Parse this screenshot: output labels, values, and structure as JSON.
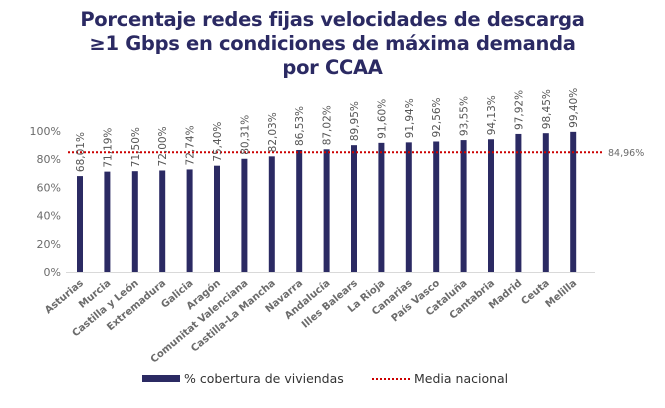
{
  "chart_data": {
    "type": "bar",
    "title": [
      "Porcentaje redes fijas velocidades de descarga",
      "≥1 Gbps en condiciones de máxima demanda",
      "por CCAA"
    ],
    "xlabel": "",
    "ylabel": "",
    "ylim": [
      0,
      100
    ],
    "yticks": [
      "0%",
      "20%",
      "40%",
      "60%",
      "80%",
      "100%"
    ],
    "ytick_values": [
      0,
      20,
      40,
      60,
      80,
      100
    ],
    "grid": false,
    "categories": [
      "Asturias",
      "Murcia",
      "Castilla y León",
      "Extremadura",
      "Galicia",
      "Aragón",
      "Comunitat Valenciana",
      "Castilla-La Mancha",
      "Navarra",
      "Andalucía",
      "Illes Balears",
      "La Rioja",
      "Canarias",
      "País Vasco",
      "Cataluña",
      "Cantabria",
      "Madrid",
      "Ceuta",
      "Melilla"
    ],
    "series": [
      {
        "name": "% cobertura de viviendas",
        "color": "#2b2a63",
        "values": [
          68.01,
          71.19,
          71.5,
          72.0,
          72.74,
          75.4,
          80.31,
          82.03,
          86.53,
          87.02,
          89.95,
          91.6,
          91.94,
          92.56,
          93.55,
          94.13,
          97.92,
          98.45,
          99.4
        ],
        "labels": [
          "68,01%",
          "71,19%",
          "71,50%",
          "72,00%",
          "72,74%",
          "75,40%",
          "80,31%",
          "82,03%",
          "86,53%",
          "87,02%",
          "89,95%",
          "91,60%",
          "91,94%",
          "92,56%",
          "93,55%",
          "94,13%",
          "97,92%",
          "98,45%",
          "99,40%"
        ]
      }
    ],
    "reference_line": {
      "name": "Media nacional",
      "value": 84.96,
      "label": "84,96%",
      "color": "#cc0000",
      "style": "dotted"
    },
    "legend_position": "bottom"
  }
}
